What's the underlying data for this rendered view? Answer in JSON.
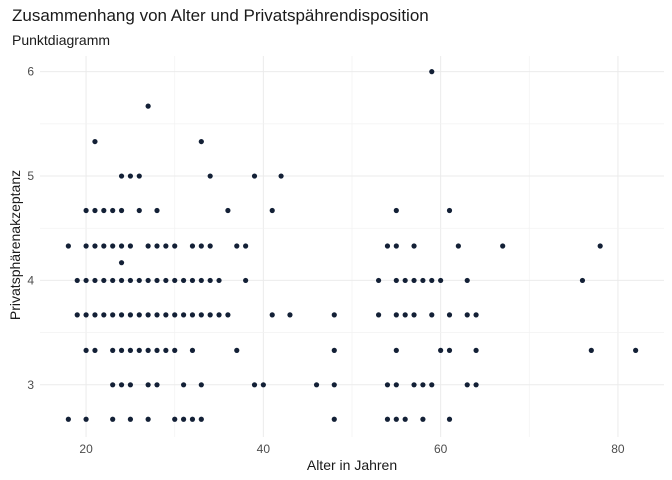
{
  "chart_data": {
    "type": "scatter",
    "title": "Zusammenhang von Alter und Privatspährendisposition",
    "subtitle": "Punktdiagramm",
    "xlabel": "Alter in Jahren",
    "ylabel": "Privatsphärenakzeptanz",
    "xlim": [
      14.8,
      85.2
    ],
    "ylim": [
      2.5,
      6.15
    ],
    "xticks": [
      20,
      40,
      60,
      80
    ],
    "yticks": [
      3,
      4,
      5,
      6
    ],
    "grid": true,
    "point_color": "#132036",
    "points": [
      {
        "x": 18,
        "y": 4.33
      },
      {
        "x": 18,
        "y": 2.67
      },
      {
        "x": 19,
        "y": 4.0
      },
      {
        "x": 19,
        "y": 3.67
      },
      {
        "x": 20,
        "y": 4.67
      },
      {
        "x": 20,
        "y": 4.33
      },
      {
        "x": 20,
        "y": 4.0
      },
      {
        "x": 20,
        "y": 3.67
      },
      {
        "x": 20,
        "y": 3.33
      },
      {
        "x": 20,
        "y": 2.67
      },
      {
        "x": 21,
        "y": 5.33
      },
      {
        "x": 21,
        "y": 4.67
      },
      {
        "x": 21,
        "y": 4.33
      },
      {
        "x": 21,
        "y": 4.0
      },
      {
        "x": 21,
        "y": 3.67
      },
      {
        "x": 21,
        "y": 3.33
      },
      {
        "x": 22,
        "y": 4.67
      },
      {
        "x": 22,
        "y": 4.33
      },
      {
        "x": 22,
        "y": 4.0
      },
      {
        "x": 22,
        "y": 3.67
      },
      {
        "x": 23,
        "y": 4.67
      },
      {
        "x": 23,
        "y": 4.33
      },
      {
        "x": 23,
        "y": 4.0
      },
      {
        "x": 23,
        "y": 3.67
      },
      {
        "x": 23,
        "y": 3.33
      },
      {
        "x": 23,
        "y": 3.0
      },
      {
        "x": 23,
        "y": 2.67
      },
      {
        "x": 24,
        "y": 5.0
      },
      {
        "x": 24,
        "y": 4.67
      },
      {
        "x": 24,
        "y": 4.33
      },
      {
        "x": 24,
        "y": 4.17
      },
      {
        "x": 24,
        "y": 4.0
      },
      {
        "x": 24,
        "y": 3.67
      },
      {
        "x": 24,
        "y": 3.33
      },
      {
        "x": 24,
        "y": 3.0
      },
      {
        "x": 25,
        "y": 5.0
      },
      {
        "x": 25,
        "y": 4.33
      },
      {
        "x": 25,
        "y": 4.0
      },
      {
        "x": 25,
        "y": 3.67
      },
      {
        "x": 25,
        "y": 3.33
      },
      {
        "x": 25,
        "y": 3.0
      },
      {
        "x": 25,
        "y": 2.67
      },
      {
        "x": 26,
        "y": 5.0
      },
      {
        "x": 26,
        "y": 4.67
      },
      {
        "x": 26,
        "y": 4.0
      },
      {
        "x": 26,
        "y": 3.67
      },
      {
        "x": 26,
        "y": 3.33
      },
      {
        "x": 27,
        "y": 5.67
      },
      {
        "x": 27,
        "y": 4.33
      },
      {
        "x": 27,
        "y": 4.0
      },
      {
        "x": 27,
        "y": 3.67
      },
      {
        "x": 27,
        "y": 3.33
      },
      {
        "x": 27,
        "y": 3.0
      },
      {
        "x": 27,
        "y": 2.67
      },
      {
        "x": 28,
        "y": 4.67
      },
      {
        "x": 28,
        "y": 4.33
      },
      {
        "x": 28,
        "y": 4.0
      },
      {
        "x": 28,
        "y": 3.67
      },
      {
        "x": 28,
        "y": 3.33
      },
      {
        "x": 28,
        "y": 3.0
      },
      {
        "x": 29,
        "y": 4.33
      },
      {
        "x": 29,
        "y": 4.0
      },
      {
        "x": 29,
        "y": 3.67
      },
      {
        "x": 29,
        "y": 3.33
      },
      {
        "x": 30,
        "y": 4.33
      },
      {
        "x": 30,
        "y": 4.0
      },
      {
        "x": 30,
        "y": 3.67
      },
      {
        "x": 30,
        "y": 3.33
      },
      {
        "x": 30,
        "y": 2.67
      },
      {
        "x": 31,
        "y": 4.0
      },
      {
        "x": 31,
        "y": 3.67
      },
      {
        "x": 31,
        "y": 3.0
      },
      {
        "x": 31,
        "y": 2.67
      },
      {
        "x": 32,
        "y": 4.33
      },
      {
        "x": 32,
        "y": 4.0
      },
      {
        "x": 32,
        "y": 3.67
      },
      {
        "x": 32,
        "y": 3.33
      },
      {
        "x": 32,
        "y": 2.67
      },
      {
        "x": 33,
        "y": 5.33
      },
      {
        "x": 33,
        "y": 4.33
      },
      {
        "x": 33,
        "y": 4.0
      },
      {
        "x": 33,
        "y": 3.67
      },
      {
        "x": 33,
        "y": 3.0
      },
      {
        "x": 33,
        "y": 2.67
      },
      {
        "x": 34,
        "y": 5.0
      },
      {
        "x": 34,
        "y": 4.33
      },
      {
        "x": 34,
        "y": 4.0
      },
      {
        "x": 34,
        "y": 3.67
      },
      {
        "x": 35,
        "y": 4.0
      },
      {
        "x": 35,
        "y": 3.67
      },
      {
        "x": 36,
        "y": 4.67
      },
      {
        "x": 36,
        "y": 3.67
      },
      {
        "x": 37,
        "y": 4.33
      },
      {
        "x": 37,
        "y": 3.33
      },
      {
        "x": 38,
        "y": 4.33
      },
      {
        "x": 38,
        "y": 4.0
      },
      {
        "x": 39,
        "y": 5.0
      },
      {
        "x": 39,
        "y": 3.0
      },
      {
        "x": 40,
        "y": 3.0
      },
      {
        "x": 41,
        "y": 4.67
      },
      {
        "x": 41,
        "y": 3.67
      },
      {
        "x": 42,
        "y": 5.0
      },
      {
        "x": 43,
        "y": 3.67
      },
      {
        "x": 46,
        "y": 3.0
      },
      {
        "x": 48,
        "y": 3.67
      },
      {
        "x": 48,
        "y": 3.33
      },
      {
        "x": 48,
        "y": 3.0
      },
      {
        "x": 48,
        "y": 2.67
      },
      {
        "x": 53,
        "y": 4.0
      },
      {
        "x": 53,
        "y": 3.67
      },
      {
        "x": 54,
        "y": 4.33
      },
      {
        "x": 54,
        "y": 3.0
      },
      {
        "x": 54,
        "y": 2.67
      },
      {
        "x": 55,
        "y": 4.67
      },
      {
        "x": 55,
        "y": 4.33
      },
      {
        "x": 55,
        "y": 4.0
      },
      {
        "x": 55,
        "y": 3.67
      },
      {
        "x": 55,
        "y": 3.33
      },
      {
        "x": 55,
        "y": 3.0
      },
      {
        "x": 55,
        "y": 2.67
      },
      {
        "x": 56,
        "y": 4.0
      },
      {
        "x": 56,
        "y": 3.67
      },
      {
        "x": 56,
        "y": 2.67
      },
      {
        "x": 57,
        "y": 4.33
      },
      {
        "x": 57,
        "y": 4.0
      },
      {
        "x": 57,
        "y": 3.67
      },
      {
        "x": 57,
        "y": 3.0
      },
      {
        "x": 58,
        "y": 4.0
      },
      {
        "x": 58,
        "y": 3.0
      },
      {
        "x": 58,
        "y": 2.67
      },
      {
        "x": 59,
        "y": 6.0
      },
      {
        "x": 59,
        "y": 4.0
      },
      {
        "x": 59,
        "y": 3.67
      },
      {
        "x": 59,
        "y": 3.0
      },
      {
        "x": 60,
        "y": 4.0
      },
      {
        "x": 60,
        "y": 3.33
      },
      {
        "x": 61,
        "y": 4.67
      },
      {
        "x": 61,
        "y": 3.67
      },
      {
        "x": 61,
        "y": 3.33
      },
      {
        "x": 61,
        "y": 2.67
      },
      {
        "x": 62,
        "y": 4.33
      },
      {
        "x": 63,
        "y": 4.0
      },
      {
        "x": 63,
        "y": 3.67
      },
      {
        "x": 63,
        "y": 3.0
      },
      {
        "x": 64,
        "y": 3.67
      },
      {
        "x": 64,
        "y": 3.33
      },
      {
        "x": 64,
        "y": 3.0
      },
      {
        "x": 67,
        "y": 4.33
      },
      {
        "x": 76,
        "y": 4.0
      },
      {
        "x": 77,
        "y": 3.33
      },
      {
        "x": 78,
        "y": 4.33
      },
      {
        "x": 82,
        "y": 3.33
      }
    ]
  }
}
